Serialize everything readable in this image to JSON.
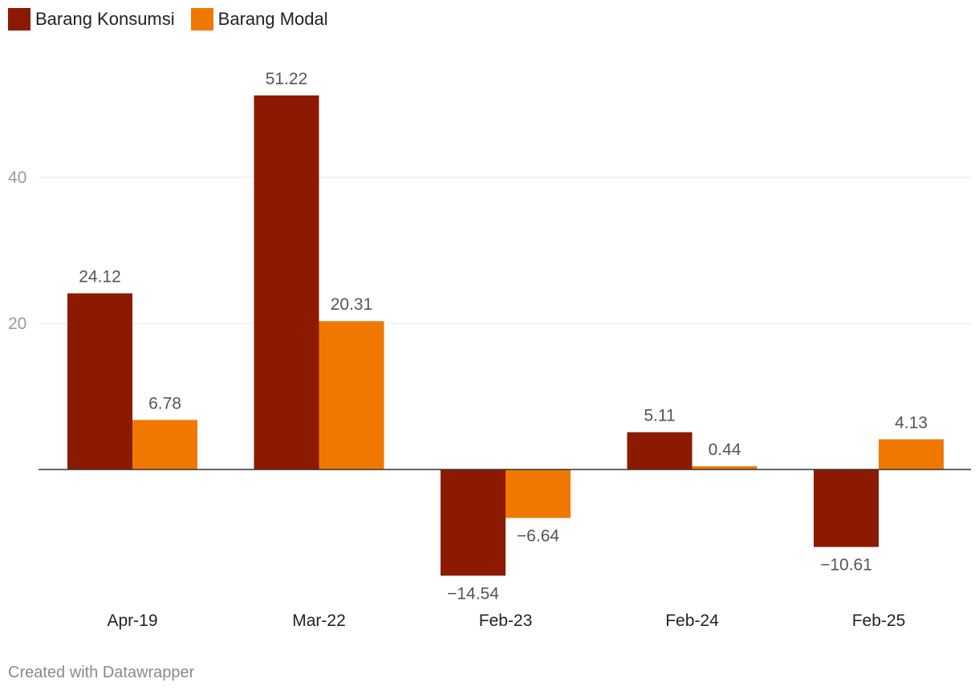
{
  "chart_data": {
    "type": "bar",
    "categories": [
      "Apr-19",
      "Mar-22",
      "Feb-23",
      "Feb-24",
      "Feb-25"
    ],
    "series": [
      {
        "name": "Barang Konsumsi",
        "values": [
          24.12,
          51.22,
          -14.54,
          5.11,
          -10.61
        ],
        "labels": [
          "24.12",
          "51.22",
          "−14.54",
          "5.11",
          "−10.61"
        ],
        "color": "#8b1a00"
      },
      {
        "name": "Barang Modal",
        "values": [
          6.78,
          20.31,
          -6.64,
          0.44,
          4.13
        ],
        "labels": [
          "6.78",
          "20.31",
          "−6.64",
          "0.44",
          "4.13"
        ],
        "color": "#f07800"
      }
    ],
    "yticks": [
      20,
      40
    ],
    "ylim": [
      -17,
      57
    ],
    "grid": true,
    "legend_position": "top-left",
    "title": "",
    "xlabel": "",
    "ylabel": ""
  },
  "colors": {
    "grid": "#e4e4e4",
    "zero_line": "#333333",
    "tick_label": "#9a9a9a",
    "value_label": "#555555",
    "category_label": "#222222"
  },
  "footer": {
    "credit": "Created with Datawrapper"
  }
}
